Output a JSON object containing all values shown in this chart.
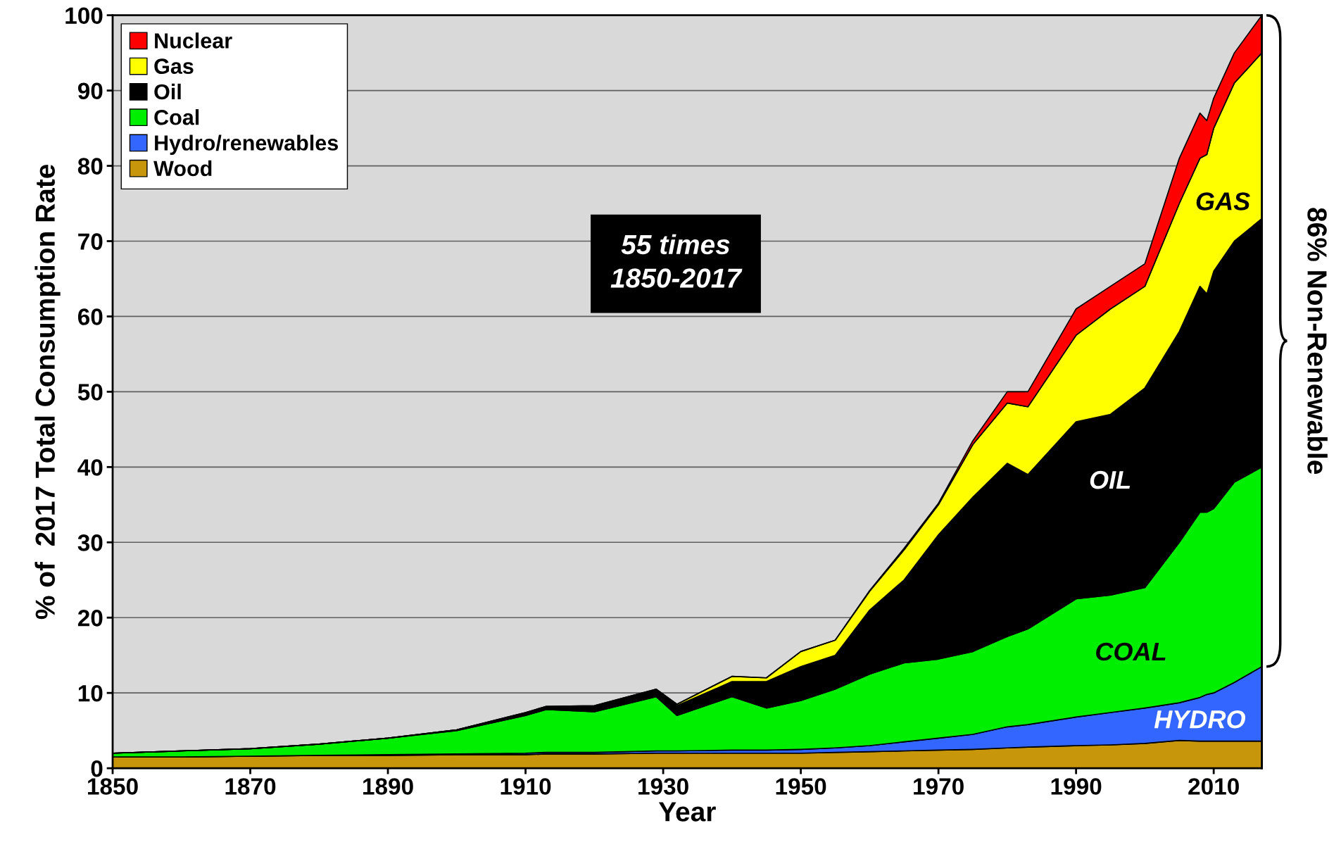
{
  "chart_data": {
    "type": "area",
    "stacked": true,
    "xlabel": "Year",
    "ylabel": "% of  2017 Total Consumption Rate",
    "x": [
      1850,
      1860,
      1870,
      1880,
      1890,
      1900,
      1910,
      1913,
      1920,
      1929,
      1932,
      1940,
      1945,
      1950,
      1955,
      1960,
      1965,
      1970,
      1975,
      1980,
      1983,
      1990,
      1995,
      2000,
      2005,
      2008,
      2009,
      2010,
      2013,
      2017
    ],
    "series": [
      {
        "name": "Wood",
        "color": "#c8960a",
        "values": [
          1.5,
          1.5,
          1.6,
          1.7,
          1.7,
          1.8,
          1.8,
          1.9,
          1.9,
          2.0,
          2.0,
          2.0,
          2.0,
          2.0,
          2.1,
          2.2,
          2.3,
          2.4,
          2.5,
          2.7,
          2.8,
          3.0,
          3.1,
          3.3,
          3.7,
          3.6,
          3.6,
          3.6,
          3.6,
          3.6
        ]
      },
      {
        "name": "Hydro/renewables",
        "color": "#3366ff",
        "values": [
          0,
          0,
          0,
          0,
          0.1,
          0.1,
          0.2,
          0.2,
          0.2,
          0.3,
          0.3,
          0.4,
          0.4,
          0.5,
          0.6,
          0.8,
          1.2,
          1.6,
          2.0,
          2.8,
          3.0,
          3.8,
          4.3,
          4.7,
          5.0,
          5.8,
          6.2,
          6.4,
          7.8,
          9.9
        ]
      },
      {
        "name": "Coal",
        "color": "#00ee00",
        "values": [
          0.5,
          0.8,
          1.0,
          1.5,
          2.2,
          3.1,
          5.0,
          5.7,
          5.4,
          7.2,
          4.7,
          7.1,
          5.6,
          6.5,
          7.8,
          9.5,
          10.5,
          10.5,
          11.0,
          12.0,
          12.7,
          15.7,
          15.6,
          16.0,
          21.3,
          24.6,
          24.2,
          24.5,
          26.6,
          26.5
        ]
      },
      {
        "name": "Oil",
        "color": "#000000",
        "values": [
          0,
          0,
          0,
          0,
          0,
          0.1,
          0.3,
          0.3,
          0.7,
          0.9,
          1.3,
          2.0,
          3.5,
          4.5,
          4.5,
          8.5,
          11.0,
          16.5,
          20.5,
          23.0,
          20.5,
          23.5,
          24.0,
          26.5,
          28.0,
          30.0,
          29.0,
          31.5,
          32.0,
          33.0
        ]
      },
      {
        "name": "Gas",
        "color": "#ffff00",
        "values": [
          0,
          0,
          0,
          0,
          0,
          0,
          0.1,
          0.1,
          0.1,
          0.1,
          0.2,
          0.7,
          0.5,
          2.0,
          2.0,
          2.5,
          4.0,
          4.0,
          7.0,
          8.0,
          9.0,
          11.5,
          14.0,
          13.5,
          17.0,
          17.0,
          18.5,
          19.0,
          21.0,
          22.0
        ]
      },
      {
        "name": "Nuclear",
        "color": "#ff0000",
        "values": [
          0,
          0,
          0,
          0,
          0,
          0,
          0,
          0,
          0,
          0,
          0,
          0,
          0,
          0,
          0,
          0.1,
          0.2,
          0.2,
          0.5,
          1.5,
          2.0,
          3.5,
          3.0,
          3.0,
          6.0,
          6.0,
          4.5,
          4.0,
          4.0,
          5.0
        ]
      }
    ],
    "xlim": [
      1850,
      2017
    ],
    "xticks": [
      1850,
      1870,
      1890,
      1910,
      1930,
      1950,
      1970,
      1990,
      2010
    ],
    "ylim": [
      0,
      100
    ],
    "yticks": [
      0,
      10,
      20,
      30,
      40,
      50,
      60,
      70,
      80,
      90,
      100
    ],
    "grid": "y",
    "legend": "top left",
    "annotations": [
      "GAS",
      "OIL",
      "COAL",
      "HYDRO",
      "55 times\n1850-2017",
      "86% Non-Renewable"
    ]
  }
}
